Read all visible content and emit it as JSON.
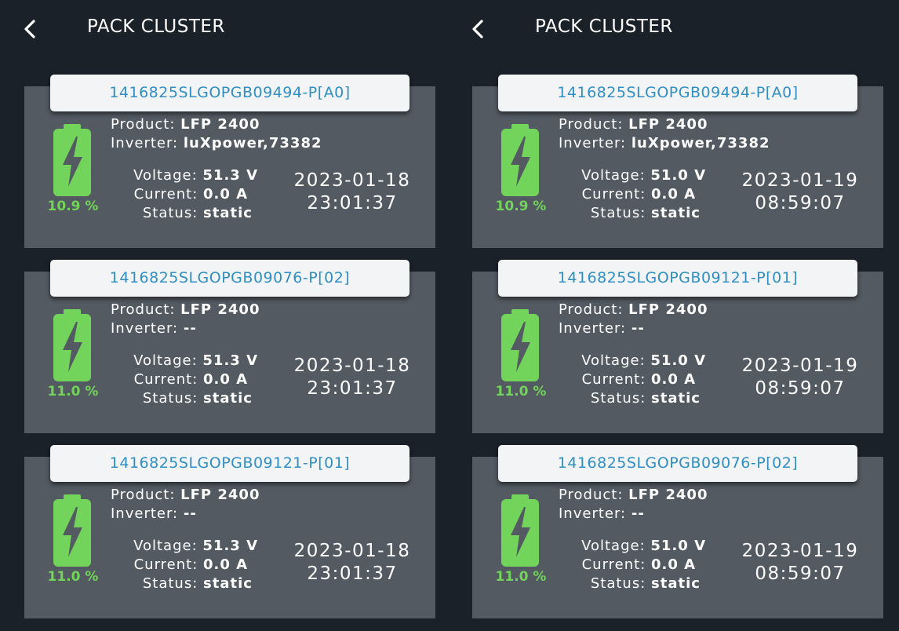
{
  "panels": [
    {
      "header": {
        "title": "PACK CLUSTER"
      },
      "cards": [
        {
          "id": "1416825SLGOPGB09494-P[A0]",
          "product_label": "Product:",
          "product": "LFP 2400",
          "inverter_label": "Inverter:",
          "inverter": "luXpower,73382",
          "voltage_label": "Voltage:",
          "voltage": "51.3 V",
          "current_label": "Current:",
          "current": "0.0 A",
          "status_label": "Status:",
          "status": "static",
          "soc": "10.9 %",
          "date": "2023-01-18",
          "time": "23:01:37"
        },
        {
          "id": "1416825SLGOPGB09076-P[02]",
          "product_label": "Product:",
          "product": "LFP 2400",
          "inverter_label": "Inverter:",
          "inverter": "--",
          "voltage_label": "Voltage:",
          "voltage": "51.3 V",
          "current_label": "Current:",
          "current": "0.0 A",
          "status_label": "Status:",
          "status": "static",
          "soc": "11.0 %",
          "date": "2023-01-18",
          "time": "23:01:37"
        },
        {
          "id": "1416825SLGOPGB09121-P[01]",
          "product_label": "Product:",
          "product": "LFP 2400",
          "inverter_label": "Inverter:",
          "inverter": "--",
          "voltage_label": "Voltage:",
          "voltage": "51.3 V",
          "current_label": "Current:",
          "current": "0.0 A",
          "status_label": "Status:",
          "status": "static",
          "soc": "11.0 %",
          "date": "2023-01-18",
          "time": "23:01:37"
        }
      ]
    },
    {
      "header": {
        "title": "PACK CLUSTER"
      },
      "cards": [
        {
          "id": "1416825SLGOPGB09494-P[A0]",
          "product_label": "Product:",
          "product": "LFP 2400",
          "inverter_label": "Inverter:",
          "inverter": "luXpower,73382",
          "voltage_label": "Voltage:",
          "voltage": "51.0 V",
          "current_label": "Current:",
          "current": "0.0 A",
          "status_label": "Status:",
          "status": "static",
          "soc": "10.9 %",
          "date": "2023-01-19",
          "time": "08:59:07"
        },
        {
          "id": "1416825SLGOPGB09121-P[01]",
          "product_label": "Product:",
          "product": "LFP 2400",
          "inverter_label": "Inverter:",
          "inverter": "--",
          "voltage_label": "Voltage:",
          "voltage": "51.0 V",
          "current_label": "Current:",
          "current": "0.0 A",
          "status_label": "Status:",
          "status": "static",
          "soc": "11.0 %",
          "date": "2023-01-19",
          "time": "08:59:07"
        },
        {
          "id": "1416825SLGOPGB09076-P[02]",
          "product_label": "Product:",
          "product": "LFP 2400",
          "inverter_label": "Inverter:",
          "inverter": "--",
          "voltage_label": "Voltage:",
          "voltage": "51.0 V",
          "current_label": "Current:",
          "current": "0.0 A",
          "status_label": "Status:",
          "status": "static",
          "soc": "11.0 %",
          "date": "2023-01-19",
          "time": "08:59:07"
        }
      ]
    }
  ],
  "icons": {
    "back": "chevron-left-icon",
    "battery": "battery-charging-icon"
  },
  "colors": {
    "background": "#1b2128",
    "card": "#535a61",
    "tag_bg": "#f2f4f6",
    "tag_text": "#2f8fc4",
    "battery_green": "#72d45a"
  }
}
